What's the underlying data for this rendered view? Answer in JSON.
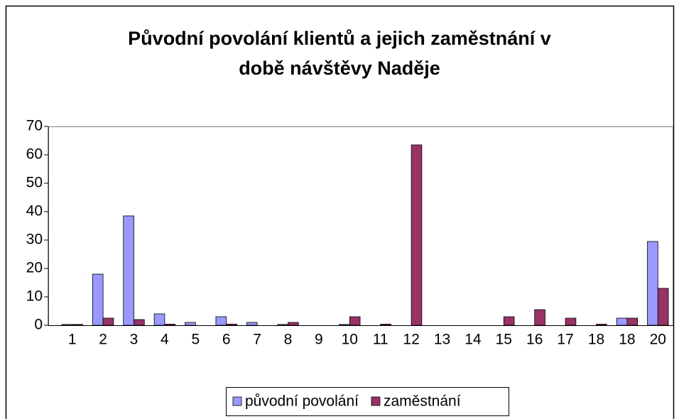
{
  "chart_data": {
    "type": "bar",
    "title": [
      "Původní povolání klientů a jejich zaměstnání v",
      "době návštěvy Naděje"
    ],
    "categories": [
      "1",
      "2",
      "3",
      "4",
      "5",
      "6",
      "7",
      "8",
      "9",
      "10",
      "11",
      "12",
      "13",
      "14",
      "15",
      "16",
      "17",
      "18",
      "18",
      "20"
    ],
    "series": [
      {
        "name": "původní povolání",
        "color": "#9999ff",
        "values": [
          0.3,
          18,
          38.5,
          4,
          1,
          3,
          1,
          0.3,
          0,
          0.3,
          0,
          0,
          0,
          0,
          0,
          0,
          0,
          0,
          2.5,
          29.5
        ]
      },
      {
        "name": "zaměstnání",
        "color": "#993366",
        "values": [
          0.3,
          2.5,
          2,
          0.4,
          0,
          0.4,
          0,
          1,
          0,
          3,
          0.4,
          63.5,
          0,
          0,
          3,
          5.5,
          2.5,
          0.4,
          2.5,
          13
        ]
      }
    ],
    "ylim": [
      0,
      70
    ],
    "yticks": [
      0,
      10,
      20,
      30,
      40,
      50,
      60,
      70
    ],
    "grid": false,
    "legend": "bottom"
  }
}
